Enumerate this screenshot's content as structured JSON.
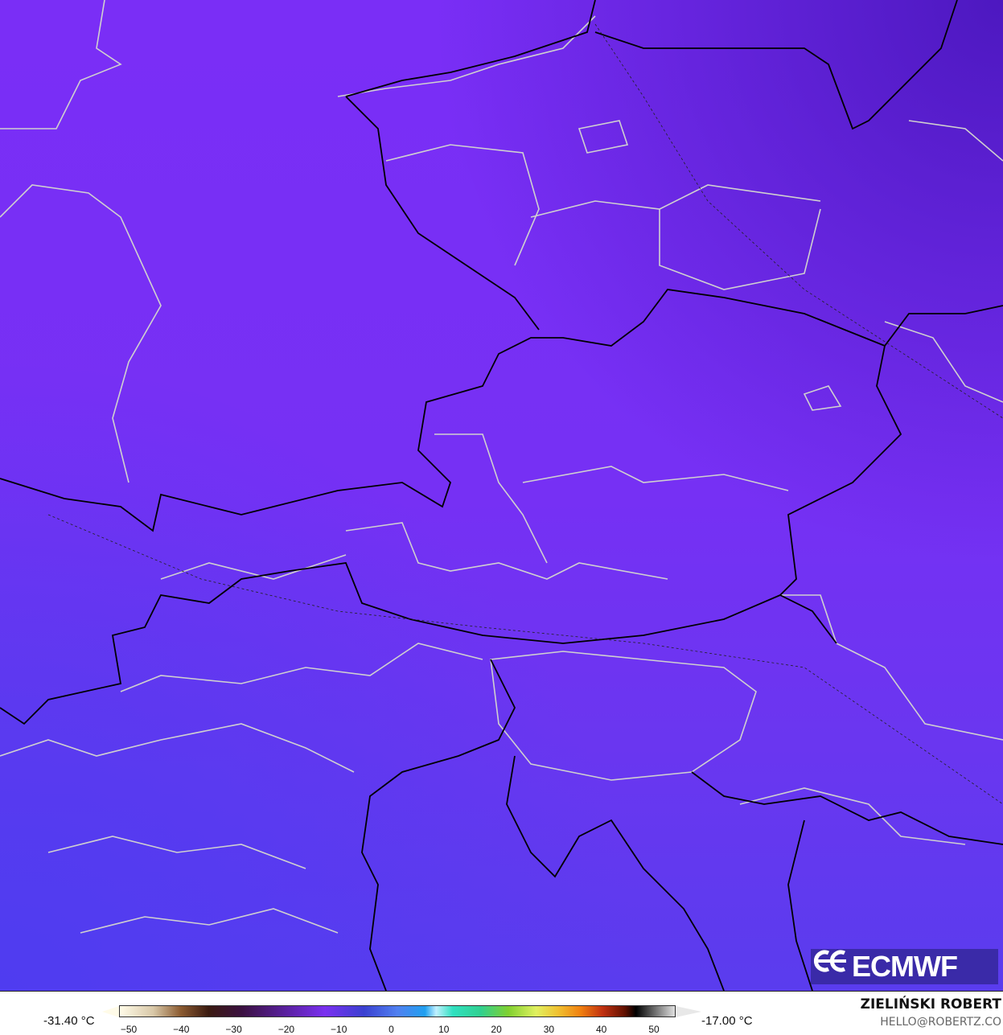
{
  "map": {
    "colors": {
      "fill_top": "#7a2ef6",
      "fill_bottom": "#5a3cee",
      "country_border": "#000000",
      "region_border": "#d0d0d0"
    }
  },
  "logo": {
    "text": "ECMWF"
  },
  "legend": {
    "min_label": "-31.40 °C",
    "max_label": "-17.00 °C",
    "ticks": [
      "−50",
      "−40",
      "−30",
      "−20",
      "−10",
      "0",
      "10",
      "20",
      "30",
      "40",
      "50"
    ]
  },
  "credits": {
    "author": "ZIELIŃSKI ROBERT",
    "email": "HELLO@ROBERTZ.CO"
  }
}
